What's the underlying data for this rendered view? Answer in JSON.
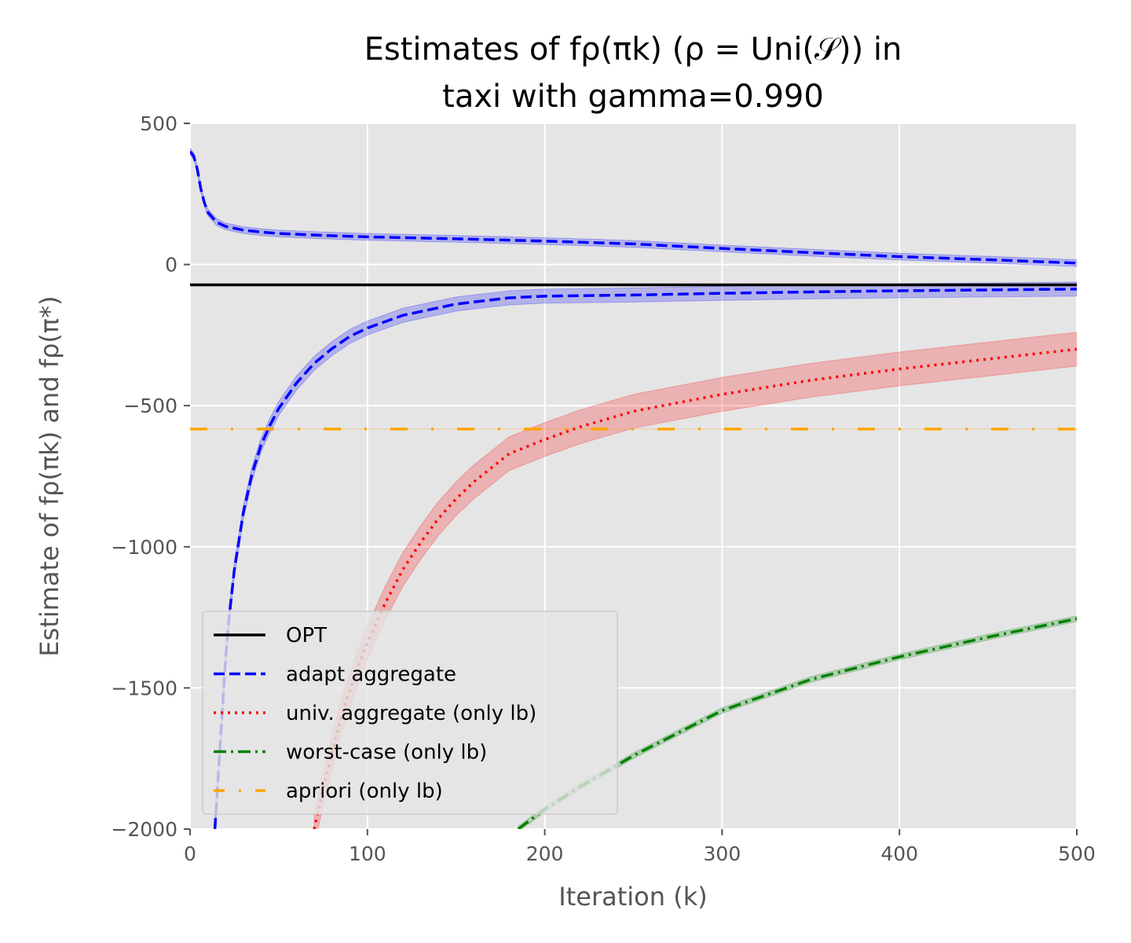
{
  "chart_data": {
    "type": "line",
    "title_line1": "Estimates of fρ(πk) (ρ = Uni(𝒮)) in",
    "title_line2": "taxi with gamma=0.990",
    "xlabel": "Iteration (k)",
    "ylabel": "Estimate of fρ(πk) and fρ(π*)",
    "xlim": [
      0,
      500
    ],
    "ylim": [
      -2000,
      500
    ],
    "x_ticks": [
      0,
      100,
      200,
      300,
      400,
      500
    ],
    "y_ticks": [
      500,
      0,
      -500,
      -1000,
      -1500,
      -2000
    ],
    "x_tick_labels": [
      "0",
      "100",
      "200",
      "300",
      "400",
      "500"
    ],
    "y_tick_labels": [
      "500",
      "0",
      "−500",
      "−1000",
      "−1500",
      "−2000"
    ],
    "grid": true,
    "legend_position": "lower-left",
    "series": [
      {
        "name": "OPT",
        "style": "solid",
        "color": "#000000",
        "x": [
          0,
          500
        ],
        "y": [
          -72,
          -72
        ]
      },
      {
        "name": "adapt aggregate",
        "style": "dashed",
        "color": "#0000ff",
        "band": 12,
        "x": [
          0,
          2,
          4,
          6,
          8,
          10,
          15,
          20,
          30,
          40,
          50,
          75,
          100,
          150,
          200,
          250,
          300,
          350,
          400,
          450,
          500
        ],
        "y": [
          400,
          385,
          340,
          270,
          220,
          185,
          150,
          135,
          122,
          115,
          110,
          103,
          98,
          91,
          83,
          73,
          57,
          42,
          28,
          17,
          5
        ]
      },
      {
        "name": "adapt aggregate",
        "style": "dashed",
        "color": "#0000ff",
        "band": 25,
        "x": [
          14,
          16,
          18,
          20,
          22,
          25,
          30,
          35,
          40,
          45,
          50,
          60,
          70,
          80,
          90,
          100,
          120,
          150,
          180,
          200,
          250,
          300,
          350,
          400,
          450,
          500
        ],
        "y": [
          -2000,
          -1800,
          -1600,
          -1400,
          -1250,
          -1080,
          -880,
          -740,
          -640,
          -570,
          -510,
          -420,
          -350,
          -298,
          -255,
          -225,
          -180,
          -140,
          -118,
          -112,
          -108,
          -102,
          -97,
          -93,
          -90,
          -87
        ]
      },
      {
        "name": "univ. aggregate (only lb)",
        "style": "dotted",
        "color": "#ff0000",
        "band": 60,
        "x": [
          70,
          75,
          80,
          85,
          90,
          95,
          100,
          110,
          120,
          130,
          140,
          150,
          160,
          180,
          200,
          220,
          250,
          300,
          350,
          400,
          450,
          500
        ],
        "y": [
          -2000,
          -1860,
          -1730,
          -1610,
          -1510,
          -1420,
          -1340,
          -1200,
          -1080,
          -985,
          -900,
          -830,
          -770,
          -670,
          -620,
          -575,
          -520,
          -460,
          -410,
          -370,
          -335,
          -300
        ]
      },
      {
        "name": "worst-case (only lb)",
        "style": "dashdot",
        "color": "#008000",
        "band": 10,
        "x": [
          185,
          200,
          220,
          250,
          300,
          350,
          400,
          450,
          500
        ],
        "y": [
          -2000,
          -1930,
          -1850,
          -1740,
          -1580,
          -1470,
          -1390,
          -1320,
          -1255
        ]
      },
      {
        "name": "apriori (only lb)",
        "style": "loose-dashdot",
        "color": "#ffa500",
        "x": [
          0,
          500
        ],
        "y": [
          -583,
          -583
        ]
      }
    ],
    "legend": [
      "OPT",
      "adapt aggregate",
      "univ. aggregate (only lb)",
      "worst-case (only lb)",
      "apriori (only lb)"
    ]
  }
}
